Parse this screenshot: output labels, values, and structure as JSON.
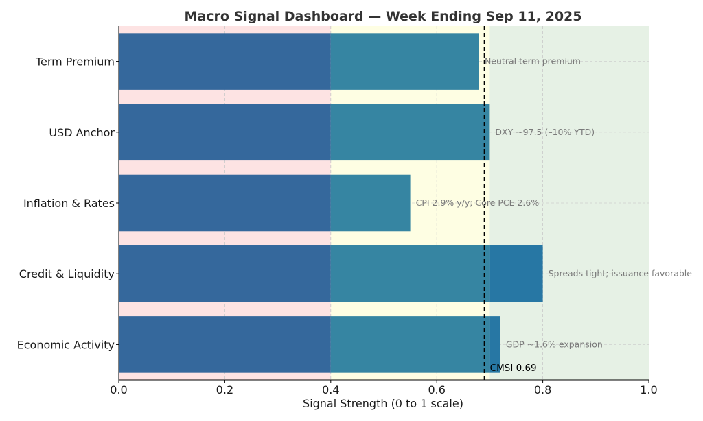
{
  "chart_data": {
    "type": "bar",
    "orientation": "horizontal",
    "title": "Macro Signal Dashboard — Week Ending Sep 11, 2025",
    "xlabel": "Signal Strength (0 to 1 scale)",
    "ylabel": "",
    "xlim": [
      0.0,
      1.0
    ],
    "xticks": [
      "0.0",
      "0.2",
      "0.4",
      "0.6",
      "0.8",
      "1.0"
    ],
    "grid": true,
    "categories": [
      "Term Premium",
      "USD Anchor",
      "Inflation & Rates",
      "Credit & Liquidity",
      "Economic Activity"
    ],
    "values": [
      0.68,
      0.7,
      0.55,
      0.8,
      0.72
    ],
    "annotations": [
      "Neutral term premium",
      "DXY ~97.5 (–10% YTD)",
      "CPI 2.9% y/y; Core PCE 2.6%",
      "Spreads tight; issuance favorable",
      "GDP ~1.6% expansion"
    ],
    "zones": [
      {
        "from": 0.0,
        "to": 0.4,
        "color": "#fde3e3",
        "bar_color": "#35689c"
      },
      {
        "from": 0.4,
        "to": 0.7,
        "color": "#fefee3",
        "bar_color": "#3685a2"
      },
      {
        "from": 0.7,
        "to": 1.0,
        "color": "#e6f1e5",
        "bar_color": "#2777a4"
      }
    ],
    "reference_line": {
      "value": 0.69,
      "label": "CMSI 0.69"
    }
  }
}
